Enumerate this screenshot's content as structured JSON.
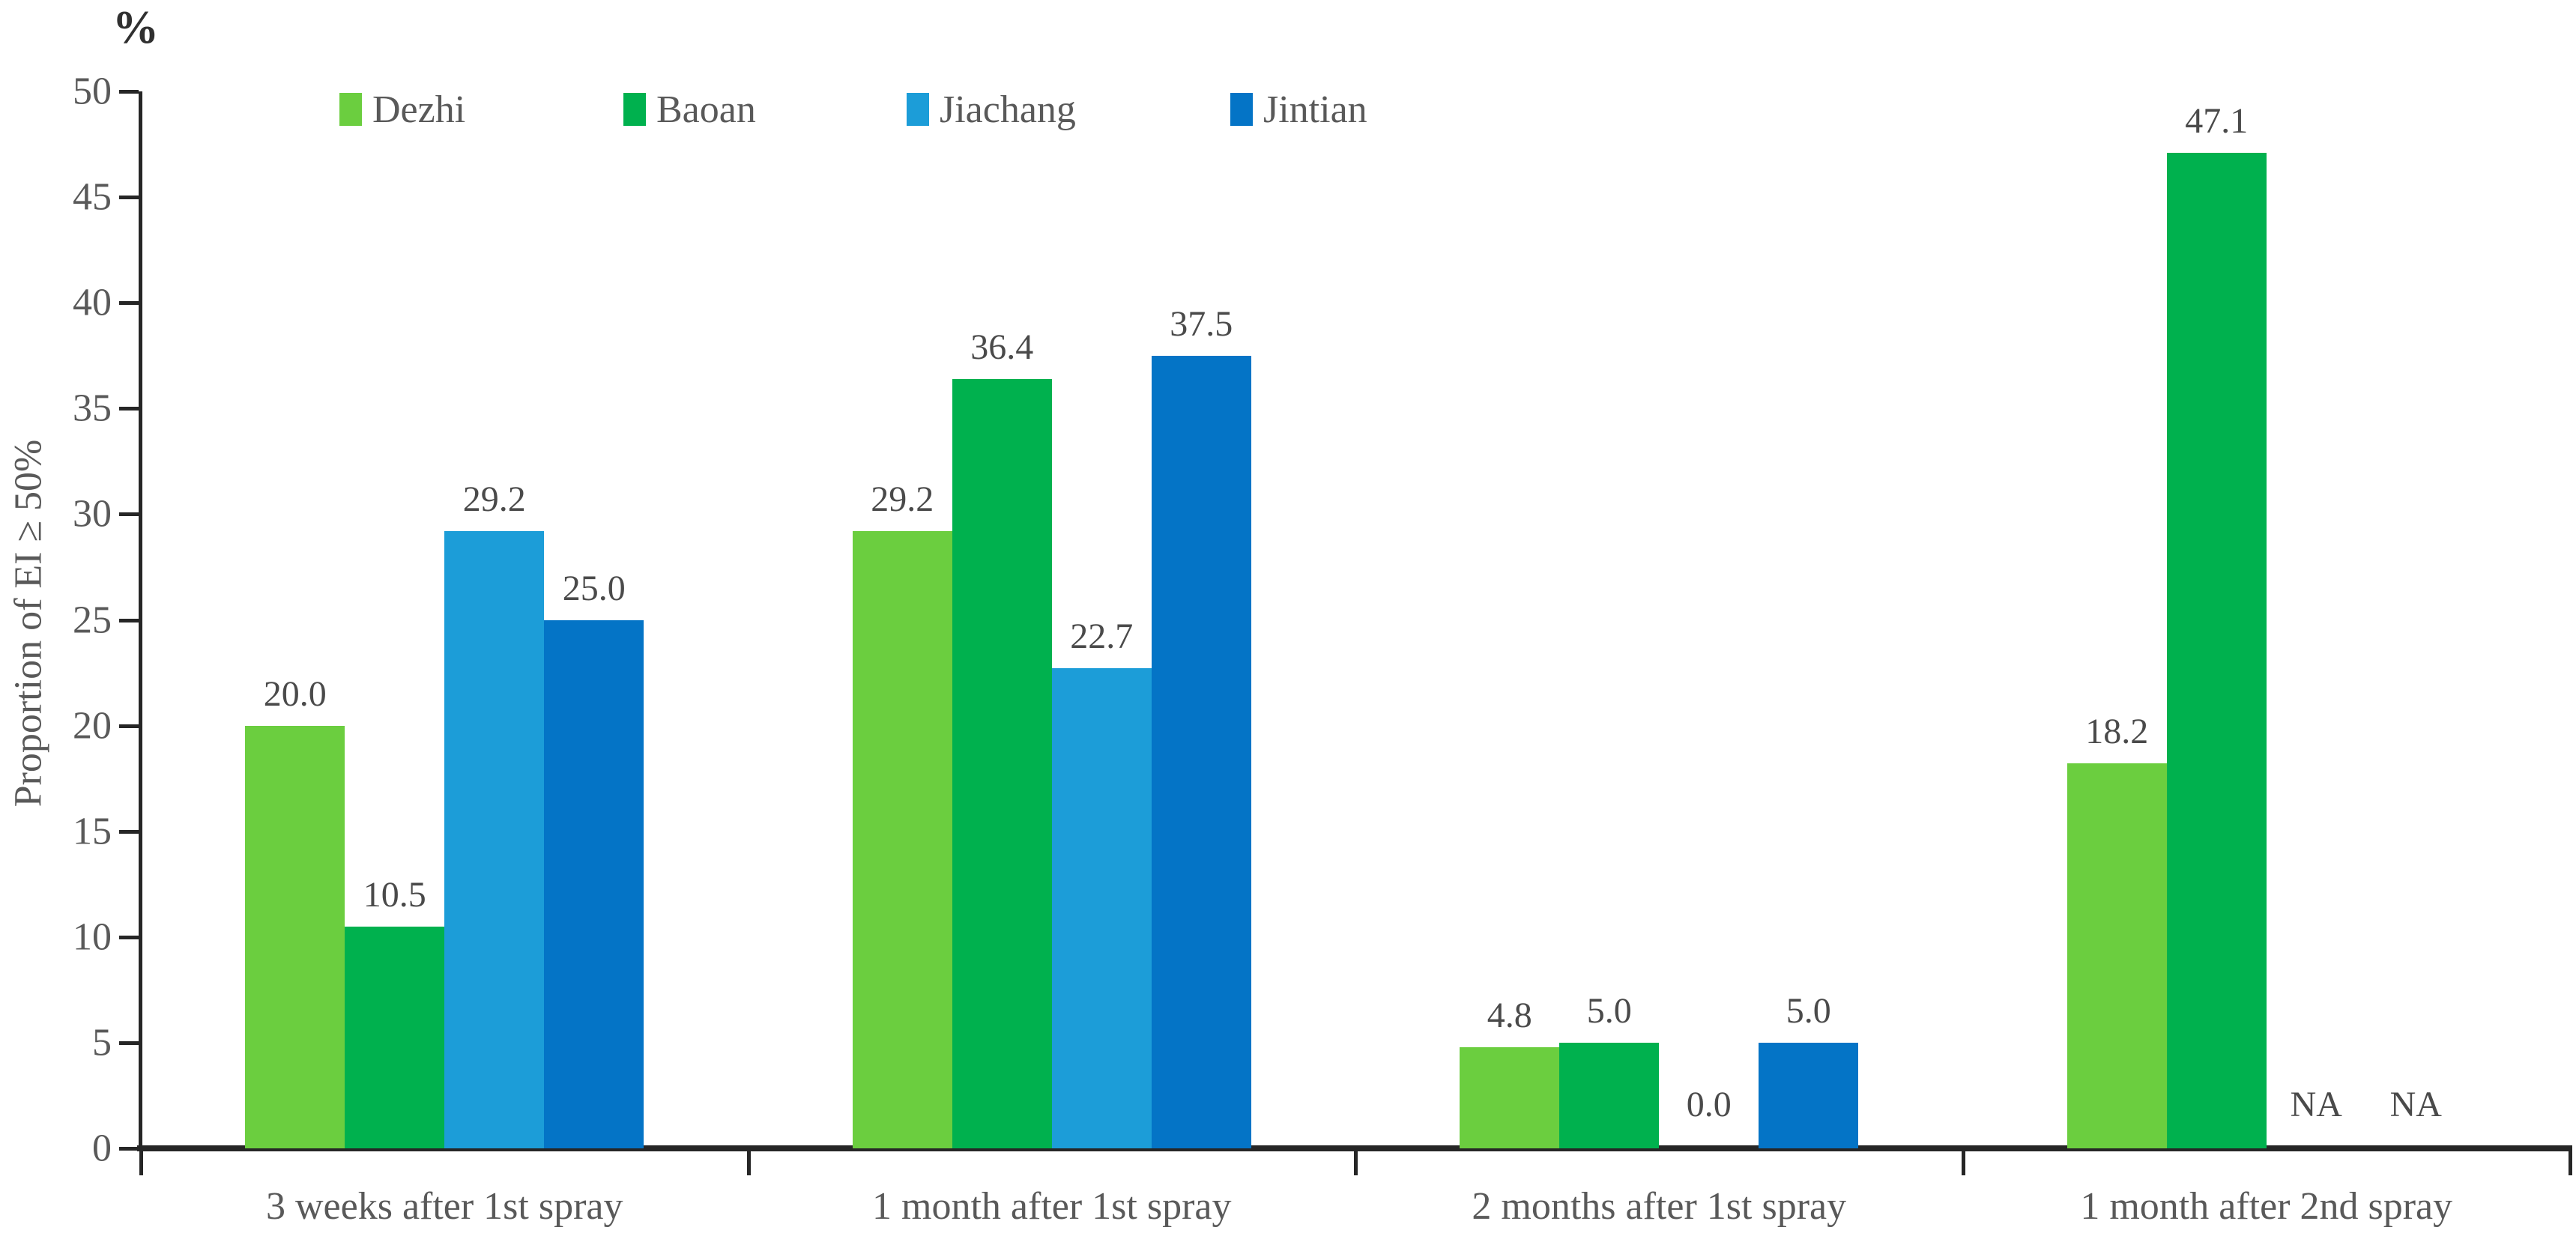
{
  "chart_data": {
    "type": "bar",
    "title": "",
    "unit_label": "%",
    "ylabel": "Proportion of EI ≥ 50%",
    "xlabel": "",
    "ylim": [
      0,
      50
    ],
    "ytick_step": 5,
    "ytick_labels": [
      "0",
      "5",
      "10",
      "15",
      "20",
      "25",
      "30",
      "35",
      "40",
      "45",
      "50"
    ],
    "grid": false,
    "legend_position": "top",
    "categories": [
      "3 weeks after 1st spray",
      "1 month after 1st spray",
      "2 months after 1st spray",
      "1 month after 2nd spray"
    ],
    "series": [
      {
        "name": "Dezhi",
        "color": "#6BCE3F",
        "values": [
          20.0,
          29.2,
          4.8,
          18.2
        ],
        "labels": [
          "20.0",
          "29.2",
          "4.8",
          "18.2"
        ]
      },
      {
        "name": "Baoan",
        "color": "#00B14E",
        "values": [
          10.5,
          36.4,
          5.0,
          47.1
        ],
        "labels": [
          "10.5",
          "36.4",
          "5.0",
          "47.1"
        ]
      },
      {
        "name": "Jiachang",
        "color": "#1C9DD8",
        "values": [
          29.2,
          22.7,
          0.0,
          null
        ],
        "labels": [
          "29.2",
          "22.7",
          "0.0",
          "NA"
        ]
      },
      {
        "name": "Jintian",
        "color": "#0474C6",
        "values": [
          25.0,
          37.5,
          5.0,
          null
        ],
        "labels": [
          "25.0",
          "37.5",
          "5.0",
          "NA"
        ]
      }
    ]
  }
}
